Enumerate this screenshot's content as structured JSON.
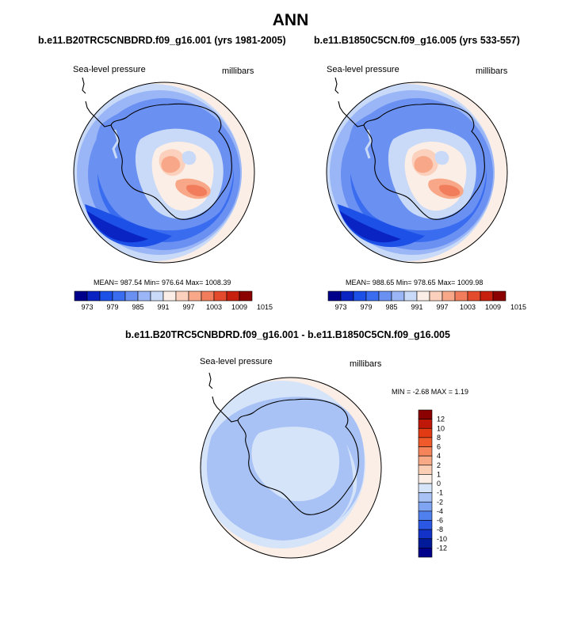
{
  "figure": {
    "title": "ANN",
    "panels": [
      {
        "title": "b.e11.B20TRC5CNBDRD.f09_g16.001 (yrs 1981-2005)",
        "variable": "Sea-level pressure",
        "units": "millibars",
        "stats": "MEAN= 987.54  Min= 976.64  Max= 1008.39",
        "colorbar_labels": [
          "973",
          "979",
          "985",
          "991",
          "997",
          "1003",
          "1009",
          "1015"
        ]
      },
      {
        "title": "b.e11.B1850C5CN.f09_g16.005 (yrs 533-557)",
        "variable": "Sea-level pressure",
        "units": "millibars",
        "stats": "MEAN= 988.65  Min= 978.65  Max= 1009.98",
        "colorbar_labels": [
          "973",
          "979",
          "985",
          "991",
          "997",
          "1003",
          "1009",
          "1015"
        ]
      },
      {
        "title": "b.e11.B20TRC5CNBDRD.f09_g16.001 - b.e11.B1850C5CN.f09_g16.005",
        "variable": "Sea-level pressure",
        "units": "millibars",
        "stats": "MIN =  -2.68 MAX =   1.19",
        "colorbar_labels": [
          "12",
          "10",
          "8",
          "6",
          "4",
          "2",
          "1",
          "0",
          "-1",
          "-2",
          "-4",
          "-6",
          "-8",
          "-10",
          "-12"
        ]
      }
    ]
  },
  "colors": {
    "abs_scale": [
      "#00008b",
      "#0a24c4",
      "#1c50e6",
      "#3a6cf0",
      "#6a90f2",
      "#9ab6f6",
      "#c8daf8",
      "#fbeee6",
      "#fbd0bc",
      "#f8a888",
      "#f17d5c",
      "#e44b2c",
      "#c8200e",
      "#8b0000"
    ],
    "diff_scale": [
      "#8b0000",
      "#c01808",
      "#e23a12",
      "#f05a2a",
      "#f6845a",
      "#f8aa86",
      "#fbcfb6",
      "#fbeee6",
      "#d6e4fa",
      "#a8c2f6",
      "#7ea4f2",
      "#5080ee",
      "#2a58e4",
      "#1232c8",
      "#001a9a",
      "#00008b"
    ]
  }
}
